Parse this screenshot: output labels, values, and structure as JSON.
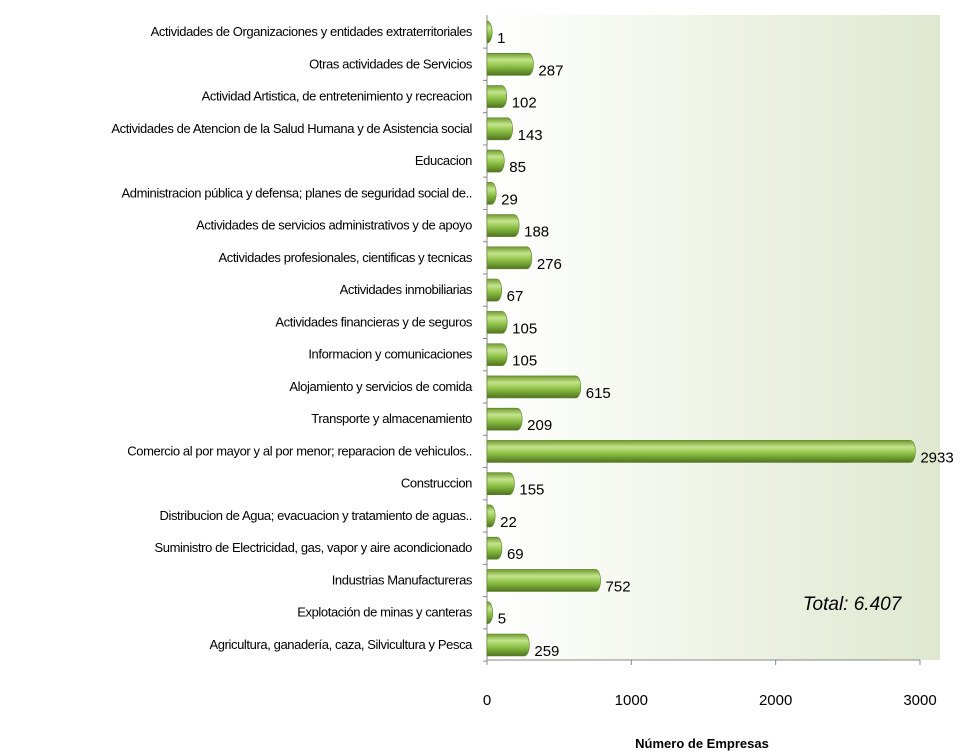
{
  "chart_data": {
    "type": "bar",
    "orientation": "horizontal",
    "x_label": "Número de Empresas",
    "annotation": "Total: 6.407",
    "categories": [
      "Actividades de Organizaciones y entidades extraterritoriales",
      "Otras actividades de Servicios",
      "Actividad Artistica, de entretenimiento y recreacion",
      "Actividades de Atencion de la Salud Humana y de Asistencia social",
      "Educacion",
      "Administracion pública y defensa; planes de seguridad social de..",
      "Actividades de servicios administrativos y de apoyo",
      "Actividades profesionales, cientificas y tecnicas",
      "Actividades inmobiliarias",
      "Actividades financieras y de seguros",
      "Informacion y comunicaciones",
      "Alojamiento y servicios de comida",
      "Transporte y almacenamiento",
      "Comercio al por mayor y al por menor; reparacion de vehiculos..",
      "Construccion",
      "Distribucion de Agua; evacuacion y tratamiento de aguas..",
      "Suministro de Electricidad, gas, vapor y aire acondicionado",
      "Industrias Manufactureras",
      "Explotación de minas y canteras",
      "Agricultura, ganadería, caza, Silvicultura y Pesca"
    ],
    "values": [
      1,
      287,
      102,
      143,
      85,
      29,
      188,
      276,
      67,
      105,
      105,
      615,
      209,
      2933,
      155,
      22,
      69,
      752,
      5,
      259
    ],
    "color": "#8cc044",
    "xlim": [
      0,
      3000
    ],
    "xticks": [
      0,
      1000,
      2000,
      3000
    ]
  }
}
